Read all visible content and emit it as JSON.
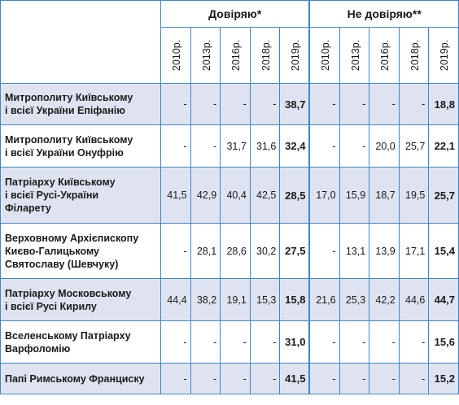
{
  "groups": {
    "trust": "Довіряю*",
    "distrust": "Не довіряю**"
  },
  "years": [
    "2010р.",
    "2013р.",
    "2016р.",
    "2018р.",
    "2019р."
  ],
  "rows": [
    {
      "name": "Митрополиту Київському\nі всієї України Епіфанію",
      "trust": [
        "-",
        "-",
        "-",
        "-",
        "38,7"
      ],
      "distrust": [
        "-",
        "-",
        "-",
        "-",
        "18,8"
      ]
    },
    {
      "name": "Митрополиту Київському\nі всієї України Онуфрію",
      "trust": [
        "-",
        "-",
        "31,7",
        "31,6",
        "32,4"
      ],
      "distrust": [
        "-",
        "-",
        "20,0",
        "25,7",
        "22,1"
      ]
    },
    {
      "name": "Патріарху Київському\nі всієї Русі-України\nФіларету",
      "trust": [
        "41,5",
        "42,9",
        "40,4",
        "42,5",
        "28,5"
      ],
      "distrust": [
        "17,0",
        "15,9",
        "18,7",
        "19,5",
        "25,7"
      ]
    },
    {
      "name": "Верховному Архієпископу\nКиєво-Галицькому\nСвятославу (Шевчуку)",
      "trust": [
        "-",
        "28,1",
        "28,6",
        "30,2",
        "27,5"
      ],
      "distrust": [
        "-",
        "13,1",
        "13,9",
        "17,1",
        "15,4"
      ]
    },
    {
      "name": "Патріарху Московському\nі всієї Русі Кирилу",
      "trust": [
        "44,4",
        "38,2",
        "19,1",
        "15,3",
        "15,8"
      ],
      "distrust": [
        "21,6",
        "25,3",
        "42,2",
        "44,6",
        "44,7"
      ]
    },
    {
      "name": "Вселенському Патріарху\nВарфоломію",
      "trust": [
        "-",
        "-",
        "-",
        "-",
        "31,0"
      ],
      "distrust": [
        "-",
        "-",
        "-",
        "-",
        "15,6"
      ]
    },
    {
      "name": "Папі Римському Франциску",
      "trust": [
        "-",
        "-",
        "-",
        "-",
        "41,5"
      ],
      "distrust": [
        "-",
        "-",
        "-",
        "-",
        "15,2"
      ]
    }
  ]
}
